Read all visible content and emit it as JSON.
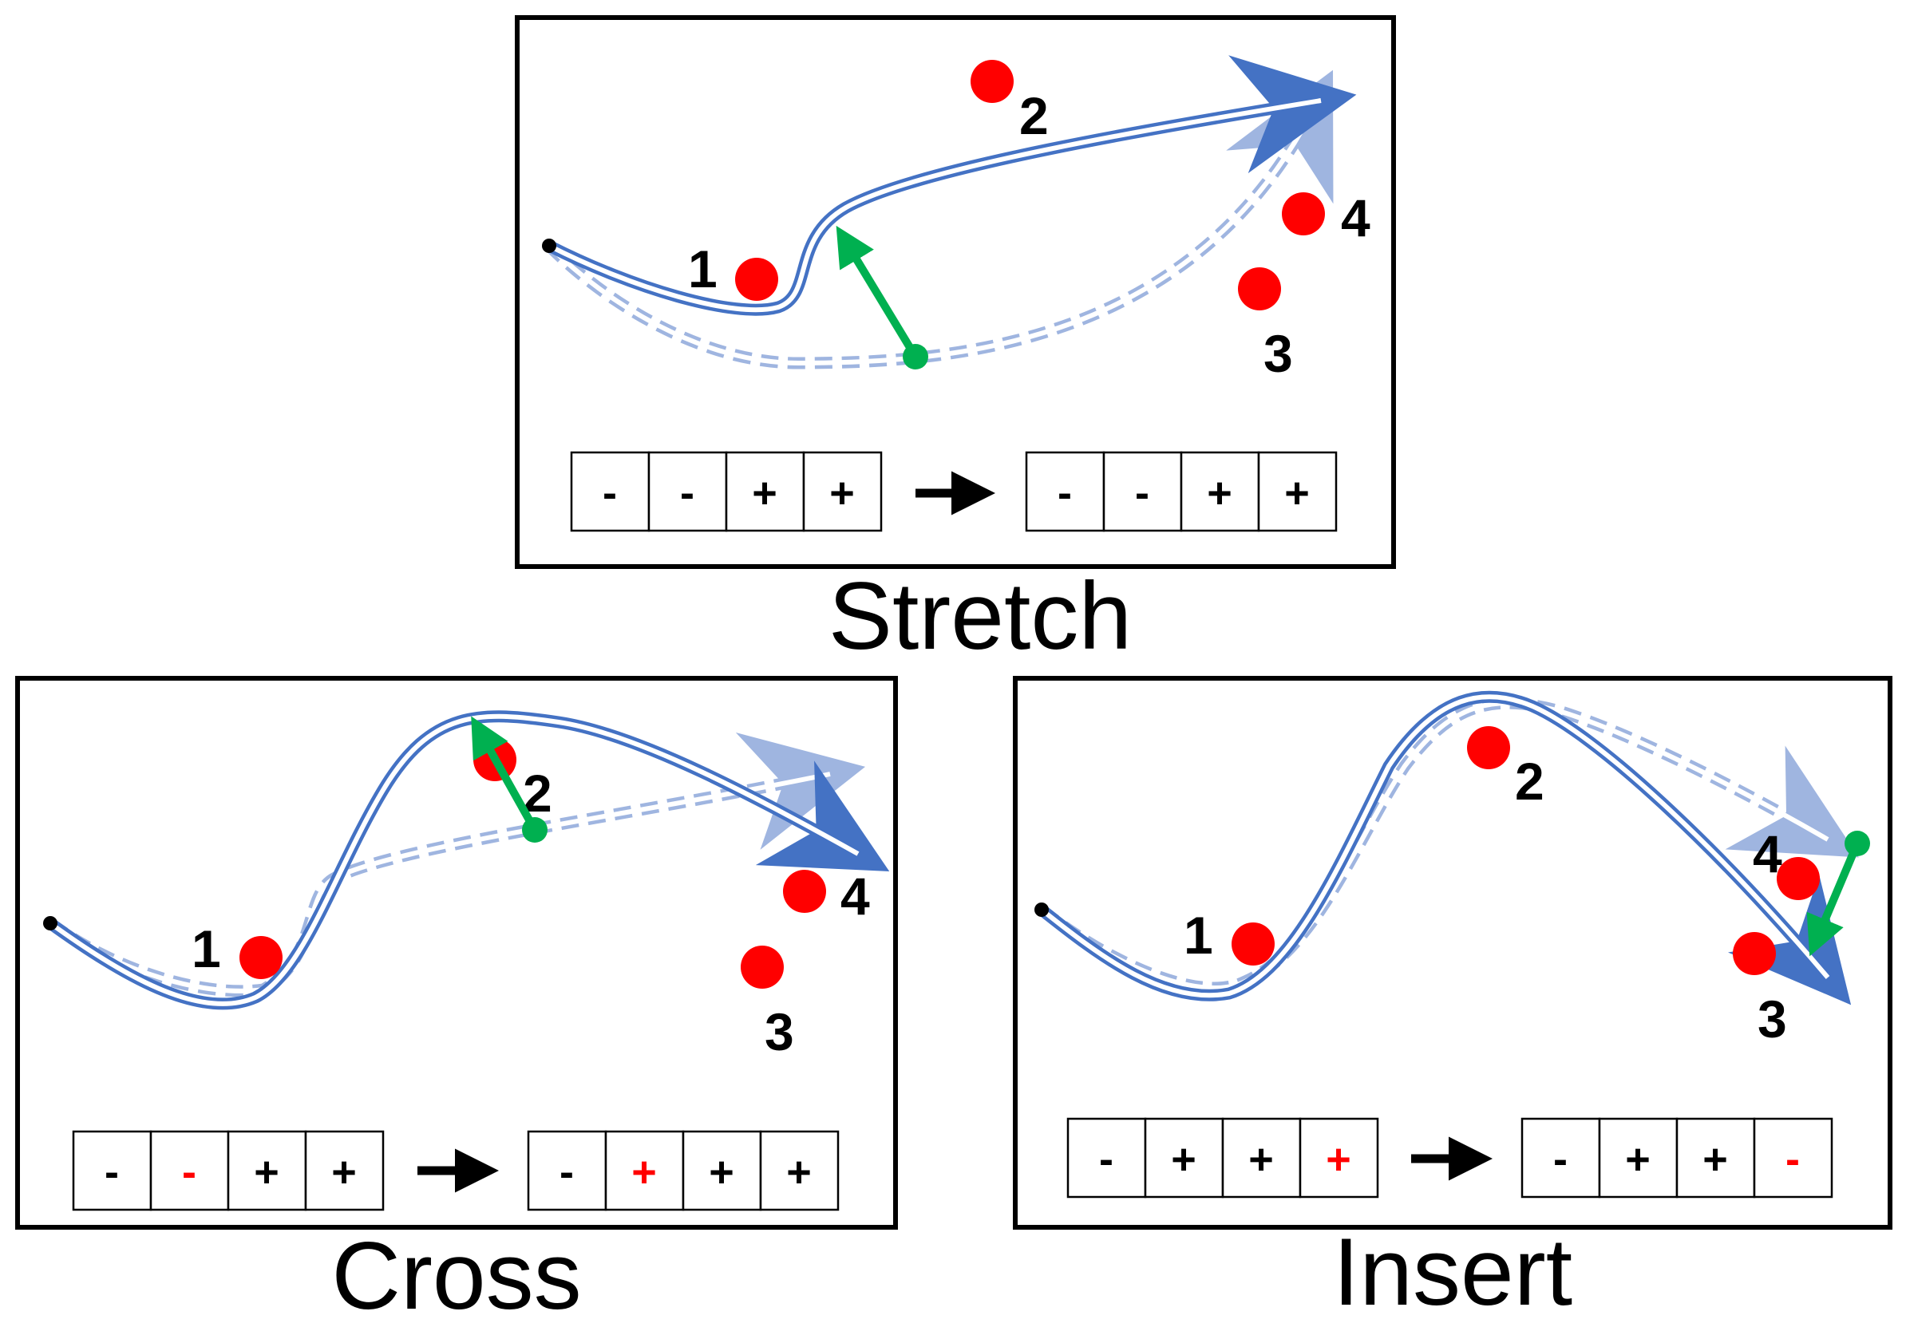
{
  "colors": {
    "obstacle": "#ff0000",
    "trajectory": "#4472c4",
    "old_trajectory": "#9fb5e0",
    "push": "#00b050",
    "normal_sign": "#000000",
    "changed_sign": "#ff0000"
  },
  "panels": [
    {
      "id": "stretch",
      "label": "Stretch",
      "obstacle_labels": [
        "1",
        "2",
        "3",
        "4"
      ],
      "before": [
        {
          "sign": "-",
          "changed": false
        },
        {
          "sign": "-",
          "changed": false
        },
        {
          "sign": "+",
          "changed": false
        },
        {
          "sign": "+",
          "changed": false
        }
      ],
      "after": [
        {
          "sign": "-",
          "changed": false
        },
        {
          "sign": "-",
          "changed": false
        },
        {
          "sign": "+",
          "changed": false
        },
        {
          "sign": "+",
          "changed": false
        }
      ]
    },
    {
      "id": "cross",
      "label": "Cross",
      "obstacle_labels": [
        "1",
        "2",
        "3",
        "4"
      ],
      "before": [
        {
          "sign": "-",
          "changed": false
        },
        {
          "sign": "-",
          "changed": true
        },
        {
          "sign": "+",
          "changed": false
        },
        {
          "sign": "+",
          "changed": false
        }
      ],
      "after": [
        {
          "sign": "-",
          "changed": false
        },
        {
          "sign": "+",
          "changed": true
        },
        {
          "sign": "+",
          "changed": false
        },
        {
          "sign": "+",
          "changed": false
        }
      ]
    },
    {
      "id": "insert",
      "label": "Insert",
      "obstacle_labels": [
        "1",
        "2",
        "3",
        "4"
      ],
      "before": [
        {
          "sign": "-",
          "changed": false
        },
        {
          "sign": "+",
          "changed": false
        },
        {
          "sign": "+",
          "changed": false
        },
        {
          "sign": "+",
          "changed": true
        }
      ],
      "after": [
        {
          "sign": "-",
          "changed": false
        },
        {
          "sign": "+",
          "changed": false
        },
        {
          "sign": "+",
          "changed": false
        },
        {
          "sign": "-",
          "changed": true
        }
      ]
    }
  ]
}
